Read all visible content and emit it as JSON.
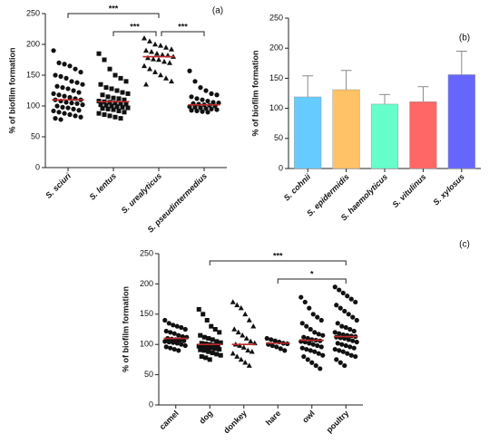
{
  "chart_data": [
    {
      "type": "dot-plot",
      "panel_label": "(a)",
      "y_label": "% of biofilm formation",
      "ylim": [
        0,
        250
      ],
      "yticks": [
        0,
        50,
        100,
        150,
        200,
        250
      ],
      "median_color": "#c0282a",
      "point_color": "#111111",
      "italic_categories": true,
      "categories": [
        "S. sciuri",
        "S. lentus",
        "S. urealyticus",
        "S. pseudintermedius"
      ],
      "markers": [
        "circle",
        "square",
        "triangle",
        "circle"
      ],
      "medians": [
        110,
        107,
        180,
        102
      ],
      "values": [
        [
          190,
          170,
          168,
          165,
          160,
          155,
          150,
          148,
          145,
          140,
          138,
          135,
          132,
          130,
          128,
          125,
          122,
          120,
          118,
          116,
          114,
          112,
          110,
          110,
          108,
          106,
          105,
          104,
          102,
          100,
          98,
          97,
          95,
          93,
          92,
          90,
          88,
          86,
          84,
          82,
          80,
          78
        ],
        [
          185,
          175,
          160,
          150,
          145,
          140,
          135,
          130,
          128,
          125,
          122,
          120,
          118,
          115,
          113,
          112,
          110,
          108,
          107,
          106,
          105,
          104,
          103,
          102,
          101,
          100,
          99,
          98,
          97,
          96,
          95,
          94,
          92,
          90,
          88,
          86,
          84,
          82,
          80
        ],
        [
          210,
          205,
          200,
          198,
          195,
          192,
          190,
          188,
          185,
          183,
          182,
          180,
          178,
          176,
          175,
          172,
          170,
          165,
          160,
          155,
          150,
          145,
          140,
          135
        ],
        [
          157,
          140,
          130,
          125,
          120,
          118,
          115,
          112,
          110,
          108,
          106,
          105,
          104,
          103,
          102,
          101,
          100,
          99,
          98,
          97,
          96,
          95,
          94,
          93,
          92,
          91,
          90
        ]
      ],
      "annotations": [
        {
          "from": 0,
          "to": 2,
          "text": "***"
        },
        {
          "from": 1,
          "to": 2,
          "text": "***"
        },
        {
          "from": 2,
          "to": 3,
          "text": "***"
        }
      ]
    },
    {
      "type": "bar",
      "panel_label": "(b)",
      "y_label": "% of biofilm formation",
      "ylim": [
        0,
        250
      ],
      "yticks": [
        0,
        50,
        100,
        150,
        200,
        250
      ],
      "italic_categories": true,
      "categories": [
        "S. cohnii",
        "S. epidermidis",
        "S. haemolyticus",
        "S. vitulinus",
        "S. xylosus"
      ],
      "values": [
        119,
        131,
        107,
        111,
        156
      ],
      "errors": [
        35,
        32,
        16,
        25,
        39
      ],
      "colors": [
        "#66ccff",
        "#ffc266",
        "#66ffcc",
        "#ff6666",
        "#6666ff"
      ]
    },
    {
      "type": "dot-plot",
      "panel_label": "(c)",
      "y_label": "% of biofilm formation",
      "ylim": [
        0,
        250
      ],
      "yticks": [
        0,
        50,
        100,
        150,
        200,
        250
      ],
      "median_color": "#c0282a",
      "point_color": "#111111",
      "italic_categories": false,
      "categories": [
        "camel",
        "dog",
        "donkey",
        "hare",
        "owl",
        "poultry"
      ],
      "markers": [
        "circle",
        "square",
        "triangle",
        "circle",
        "circle",
        "circle"
      ],
      "medians": [
        110,
        100,
        100,
        102,
        107,
        113
      ],
      "values": [
        [
          140,
          135,
          132,
          130,
          128,
          125,
          122,
          120,
          118,
          115,
          113,
          112,
          110,
          109,
          108,
          107,
          106,
          105,
          104,
          103,
          102,
          100,
          98,
          96,
          94,
          92,
          90
        ],
        [
          158,
          150,
          140,
          130,
          125,
          120,
          115,
          112,
          110,
          108,
          105,
          103,
          102,
          101,
          100,
          99,
          98,
          97,
          96,
          95,
          94,
          93,
          92,
          91,
          90,
          88,
          86,
          84,
          82,
          80,
          78,
          75
        ],
        [
          170,
          165,
          160,
          150,
          140,
          130,
          125,
          120,
          115,
          110,
          105,
          102,
          100,
          98,
          95,
          90,
          88,
          85,
          80,
          75,
          70,
          65
        ],
        [
          110,
          108,
          106,
          104,
          102,
          101,
          100,
          98,
          96,
          93,
          90
        ],
        [
          178,
          170,
          160,
          150,
          145,
          140,
          135,
          130,
          125,
          120,
          117,
          115,
          112,
          110,
          108,
          107,
          106,
          105,
          104,
          102,
          100,
          98,
          96,
          94,
          92,
          90,
          88,
          85,
          82,
          80,
          75,
          70,
          65,
          60
        ],
        [
          195,
          190,
          185,
          180,
          175,
          170,
          165,
          160,
          155,
          150,
          145,
          140,
          135,
          130,
          128,
          125,
          122,
          120,
          118,
          116,
          115,
          114,
          113,
          112,
          111,
          110,
          108,
          106,
          104,
          102,
          100,
          98,
          96,
          94,
          92,
          90,
          88,
          85,
          82,
          80,
          75,
          70,
          65
        ]
      ],
      "annotations": [
        {
          "from": 1,
          "to": 5,
          "text": "***"
        },
        {
          "from": 3,
          "to": 5,
          "text": "*"
        }
      ]
    }
  ]
}
